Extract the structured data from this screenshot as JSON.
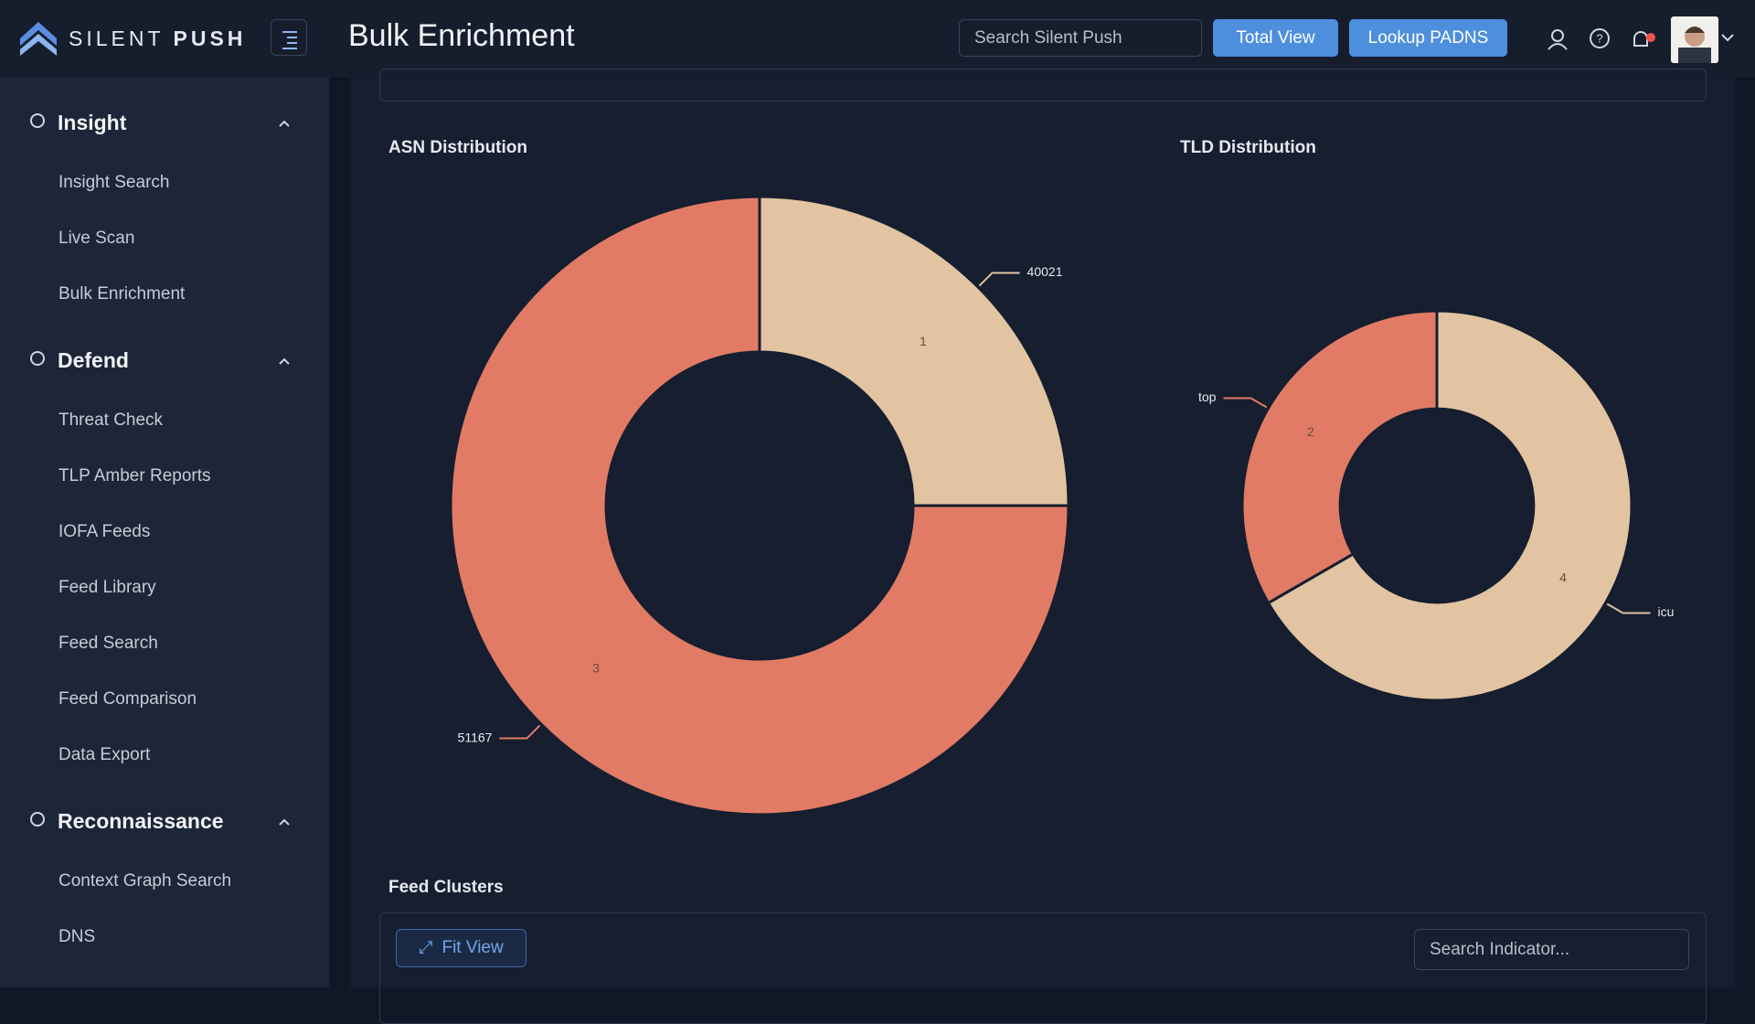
{
  "header": {
    "logo": {
      "light": "SILENT",
      "bold": "PUSH"
    },
    "title": "Bulk Enrichment",
    "search_placeholder": "Search Silent Push",
    "buttons": [
      "Total View",
      "Lookup PADNS"
    ]
  },
  "sidebar": {
    "sections": [
      {
        "title": "Insight",
        "items": [
          "Insight Search",
          "Live Scan",
          "Bulk Enrichment"
        ]
      },
      {
        "title": "Defend",
        "items": [
          "Threat Check",
          "TLP Amber Reports",
          "IOFA Feeds",
          "Feed Library",
          "Feed Search",
          "Feed Comparison",
          "Data Export"
        ]
      },
      {
        "title": "Reconnaissance",
        "items": [
          "Context Graph Search",
          "DNS"
        ]
      }
    ]
  },
  "chart_data": [
    {
      "type": "pie",
      "donut": true,
      "title": "ASN Distribution",
      "categories": [
        "40021",
        "51167"
      ],
      "values": [
        1,
        3
      ],
      "colors": [
        "#e2c4a2",
        "#e27b66"
      ]
    },
    {
      "type": "pie",
      "donut": true,
      "title": "TLD Distribution",
      "categories": [
        "icu",
        "top"
      ],
      "values": [
        4,
        2
      ],
      "colors": [
        "#e2c4a2",
        "#e27b66"
      ]
    }
  ],
  "feed_clusters": {
    "title": "Feed Clusters",
    "button": "Fit View",
    "search_placeholder": "Search Indicator..."
  }
}
